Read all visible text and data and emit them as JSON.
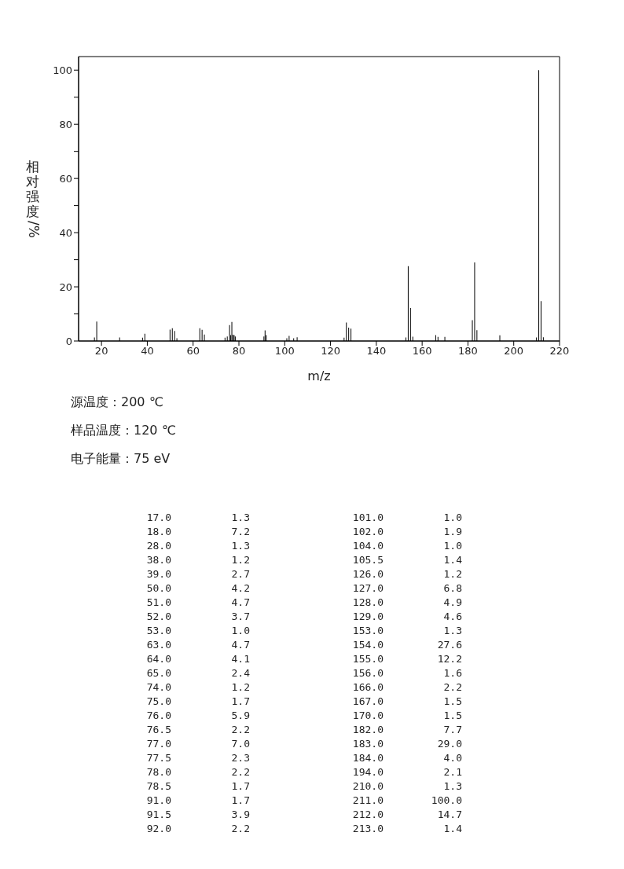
{
  "chart_data": [
    {
      "type": "bar",
      "xlabel": "m/z",
      "ylabel": "相对强度/%",
      "x": [
        17.0,
        18.0,
        28.0,
        38.0,
        39.0,
        50.0,
        51.0,
        52.0,
        53.0,
        63.0,
        64.0,
        65.0,
        74.0,
        75.0,
        76.0,
        76.5,
        77.0,
        77.5,
        78.0,
        78.5,
        91.0,
        91.5,
        92.0,
        101.0,
        102.0,
        104.0,
        105.5,
        126.0,
        127.0,
        128.0,
        129.0,
        153.0,
        154.0,
        155.0,
        156.0,
        166.0,
        167.0,
        170.0,
        182.0,
        183.0,
        184.0,
        194.0,
        210.0,
        211.0,
        212.0,
        213.0
      ],
      "values": [
        1.3,
        7.2,
        1.3,
        1.2,
        2.7,
        4.2,
        4.7,
        3.7,
        1.0,
        4.7,
        4.1,
        2.4,
        1.2,
        1.7,
        5.9,
        2.2,
        7.0,
        2.3,
        2.2,
        1.7,
        1.7,
        3.9,
        2.2,
        1.0,
        1.9,
        1.0,
        1.4,
        1.2,
        6.8,
        4.9,
        4.6,
        1.3,
        27.6,
        12.2,
        1.6,
        2.2,
        1.5,
        1.5,
        7.7,
        29.0,
        4.0,
        2.1,
        1.3,
        100.0,
        14.7,
        1.4
      ],
      "color": "#000000",
      "xlim": [
        10,
        220
      ],
      "xticks": [
        20,
        40,
        60,
        80,
        100,
        120,
        140,
        160,
        180,
        200,
        220
      ],
      "ylim": [
        0,
        105
      ],
      "yticks": [
        0,
        {
          "value": 10,
          "label": null
        },
        20,
        {
          "value": 30,
          "label": null
        },
        40,
        {
          "value": 50,
          "label": null
        },
        60,
        {
          "value": 70,
          "label": null
        },
        80,
        {
          "value": 90,
          "label": null
        },
        100
      ],
      "annotations": [
        "源温度：200 ℃",
        "样品温度：120 ℃",
        "电子能量：75 eV"
      ]
    },
    {
      "type": "other",
      "annotations": [
        "17.0",
        "1.3",
        "101.0",
        "1.0",
        "18.0",
        "7.2",
        "102.0",
        "1.9",
        "28.0",
        "1.3",
        "104.0",
        "1.0",
        "38.0",
        "1.2",
        "105.5",
        "1.4",
        "39.0",
        "2.7",
        "126.0",
        "1.2",
        "50.0",
        "4.2",
        "127.0",
        "6.8",
        "51.0",
        "4.7",
        "128.0",
        "4.9",
        "52.0",
        "3.7",
        "129.0",
        "4.6",
        "53.0",
        "1.0",
        "153.0",
        "1.3",
        "63.0",
        "4.7",
        "154.0",
        "27.6",
        "64.0",
        "4.1",
        "155.0",
        "12.2",
        "65.0",
        "2.4",
        "156.0",
        "1.6",
        "74.0",
        "1.2",
        "166.0",
        "2.2",
        "75.0",
        "1.7",
        "167.0",
        "1.5",
        "76.0",
        "5.9",
        "170.0",
        "1.5",
        "76.5",
        "2.2",
        "182.0",
        "7.7",
        "77.0",
        "7.0",
        "183.0",
        "29.0",
        "77.5",
        "2.3",
        "184.0",
        "4.0",
        "78.0",
        "2.2",
        "194.0",
        "2.1",
        "78.5",
        "1.7",
        "210.0",
        "1.3",
        "91.0",
        "1.7",
        "211.0",
        "100.0",
        "91.5",
        "3.9",
        "212.0",
        "14.7",
        "92.0",
        "2.2",
        "213.0",
        "1.4"
      ]
    }
  ]
}
